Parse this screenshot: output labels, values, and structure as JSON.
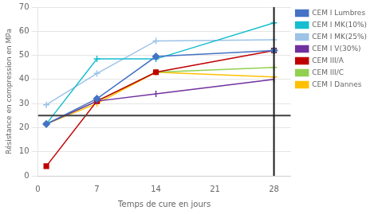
{
  "chart_data": {
    "type": "line",
    "xlabel": "Temps de cure en jours",
    "ylabel": "Résistance en compression en MPa",
    "x": [
      1,
      7,
      14,
      28
    ],
    "series": [
      {
        "name": "CEM I Lumbres",
        "color": "#4472C4",
        "marker": "diamond",
        "values": [
          21.5,
          32,
          49.5,
          52
        ]
      },
      {
        "name": "CEM I MK(10%)",
        "color": "#17BECF",
        "marker": "plus",
        "values": [
          21.5,
          48.5,
          48.5,
          63.5
        ]
      },
      {
        "name": "CEM I MK(25%)",
        "color": "#9DC3E6",
        "marker": "plus",
        "values": [
          29.5,
          42.5,
          56,
          56.5
        ]
      },
      {
        "name": "CEM I V(30%)",
        "color": "#7030A0",
        "marker": "vline",
        "values": [
          21.5,
          31,
          34,
          40
        ]
      },
      {
        "name": "CEM III/A",
        "color": "#C00000",
        "marker": "square",
        "values": [
          4.0,
          31,
          43,
          52
        ]
      },
      {
        "name": "CEM III/C",
        "color": "#92D050",
        "marker": "plus",
        "values": [
          21.5,
          31,
          43,
          45
        ]
      },
      {
        "name": "CEM I Dannes",
        "color": "#FFC000",
        "marker": "plus",
        "values": [
          21.5,
          30,
          43,
          41
        ]
      }
    ],
    "reference_lines": [
      {
        "axis": "y",
        "value": 25,
        "color": "#404040"
      },
      {
        "axis": "x",
        "value": 28,
        "color": "#1a1a1a"
      }
    ],
    "xlim": [
      0,
      30
    ],
    "ylim": [
      0,
      70
    ],
    "xticks": [
      0,
      7,
      14,
      21,
      28
    ],
    "yticks": [
      0,
      10,
      20,
      30,
      40,
      50,
      60,
      70
    ],
    "grid": "y",
    "legend": "right"
  }
}
